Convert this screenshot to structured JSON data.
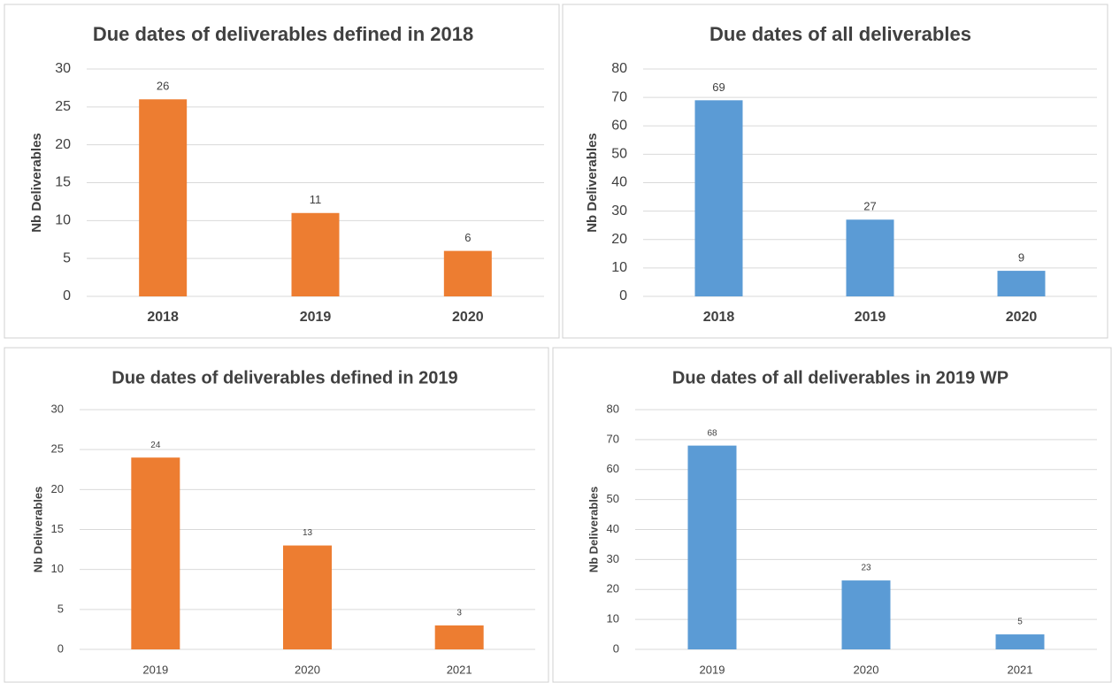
{
  "chart_data": [
    {
      "type": "bar",
      "title": "Due dates of deliverables defined in 2018",
      "y_label": "Nb Deliverables",
      "categories": [
        "2018",
        "2019",
        "2020"
      ],
      "values": [
        26,
        11,
        6
      ],
      "color": "#ed7d31",
      "ylim": [
        0,
        30
      ],
      "yticks": [
        0,
        5,
        10,
        15,
        20,
        25,
        30
      ],
      "grid": true
    },
    {
      "type": "bar",
      "title": "Due dates of all deliverables",
      "y_label": "Nb Deliverables",
      "categories": [
        "2018",
        "2019",
        "2020"
      ],
      "values": [
        69,
        27,
        9
      ],
      "color": "#5b9bd5",
      "ylim": [
        0,
        80
      ],
      "yticks": [
        0,
        10,
        20,
        30,
        40,
        50,
        60,
        70,
        80
      ],
      "grid": true
    },
    {
      "type": "bar",
      "title": "Due dates of deliverables defined in 2019",
      "y_label": "Nb Deliverables",
      "categories": [
        "2019",
        "2020",
        "2021"
      ],
      "values": [
        24,
        13,
        3
      ],
      "color": "#ed7d31",
      "ylim": [
        0,
        30
      ],
      "yticks": [
        0,
        5,
        10,
        15,
        20,
        25,
        30
      ],
      "grid": true
    },
    {
      "type": "bar",
      "title": "Due dates of all deliverables in 2019 WP",
      "y_label": "Nb Deliverables",
      "categories": [
        "2019",
        "2020",
        "2021"
      ],
      "values": [
        68,
        23,
        5
      ],
      "color": "#5b9bd5",
      "ylim": [
        0,
        80
      ],
      "yticks": [
        0,
        10,
        20,
        30,
        40,
        50,
        60,
        70,
        80
      ],
      "grid": true
    }
  ]
}
